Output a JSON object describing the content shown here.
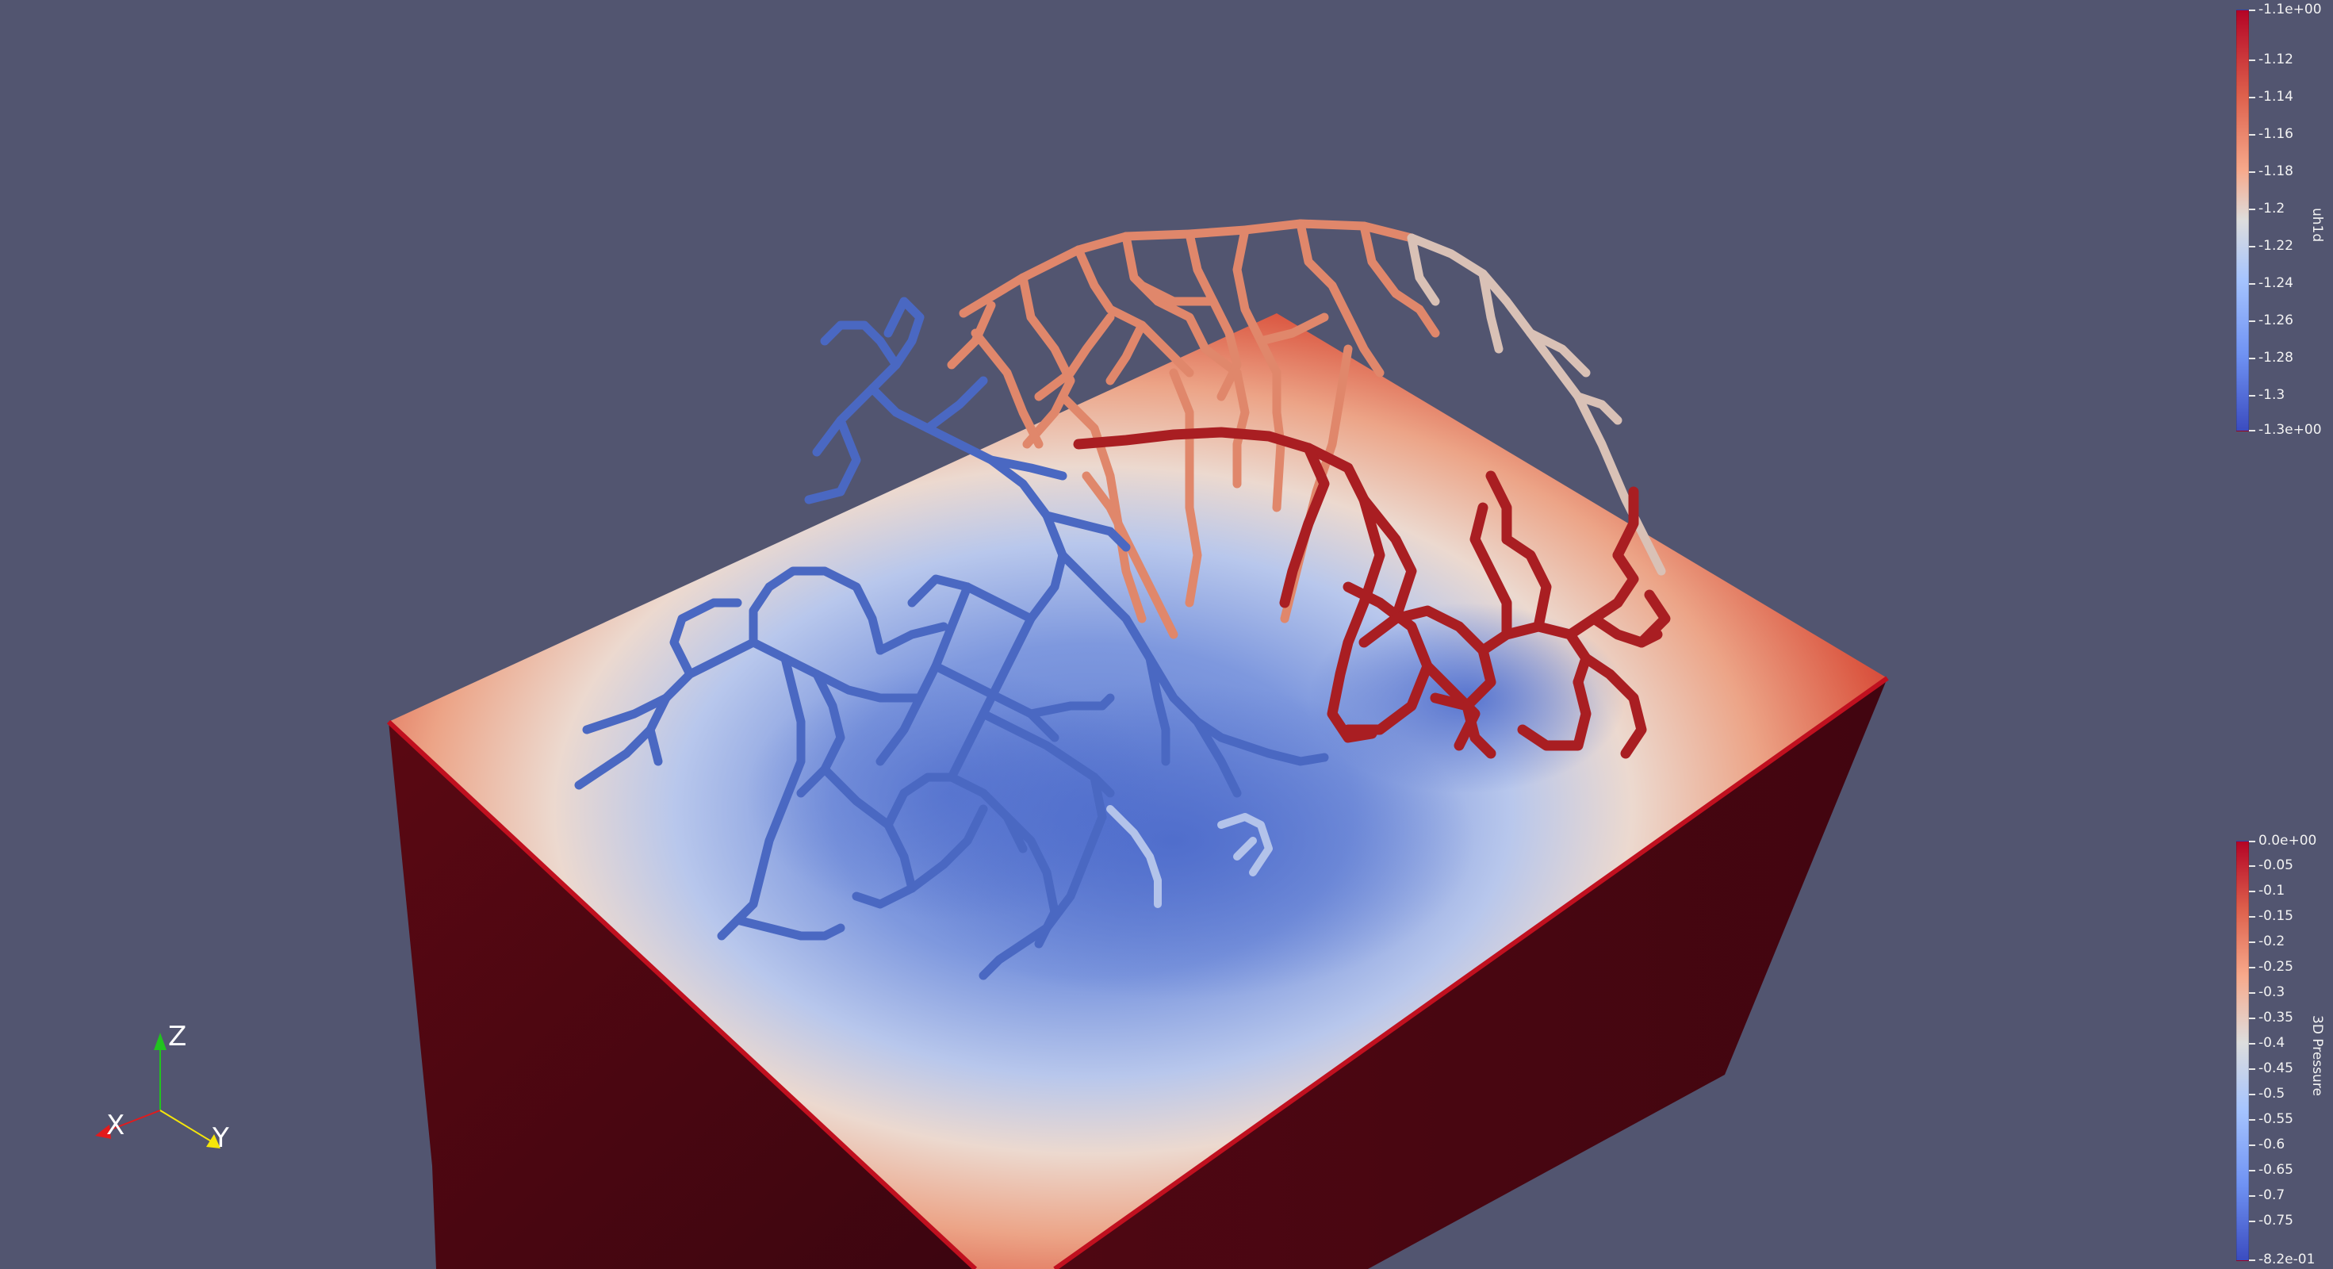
{
  "scene": {
    "box_top_colors": {
      "edge": "#c40f1f",
      "mid_warm": "#e8816a",
      "neutral": "#ead7ce",
      "cool": "#9bb2ea",
      "core": "#5a77cf"
    },
    "box_side_color": "#4a0711",
    "box_front_color": "#5b0915",
    "background": "#525570",
    "network_colors": {
      "blue": "#4a68c2",
      "salmon": "#e0876b",
      "red": "#a91e22",
      "pale": "#dccbc3",
      "light_blue": "#b3c3ea"
    }
  },
  "colorbar_top": {
    "title": "uh1d",
    "ticks": [
      "-1.1e+00",
      "-1.12",
      "-1.14",
      "-1.16",
      "-1.18",
      "-1.2",
      "-1.22",
      "-1.24",
      "-1.26",
      "-1.28",
      "-1.3",
      "-1.3e+00"
    ],
    "colormap": "Cool to Warm"
  },
  "colorbar_bottom": {
    "title": "3D Pressure",
    "ticks": [
      "0.0e+00",
      "-0.05",
      "-0.1",
      "-0.15",
      "-0.2",
      "-0.25",
      "-0.3",
      "-0.35",
      "-0.4",
      "-0.45",
      "-0.5",
      "-0.55",
      "-0.6",
      "-0.65",
      "-0.7",
      "-0.75",
      "-8.2e-01"
    ],
    "colormap": "Cool to Warm"
  },
  "axes": {
    "x_label": "X",
    "y_label": "Y",
    "z_label": "Z",
    "x_color": "#e31a1c",
    "y_color": "#f5e60a",
    "z_color": "#22c21f"
  }
}
